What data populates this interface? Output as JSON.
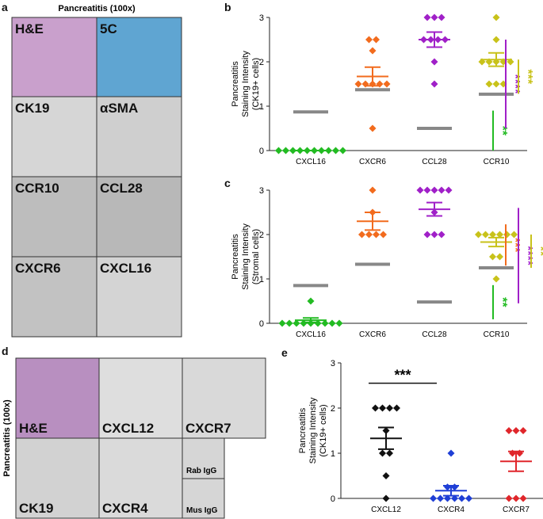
{
  "panels": {
    "a": "a",
    "b": "b",
    "c": "c",
    "d": "d",
    "e": "e"
  },
  "micrographs_a": {
    "title": "Pancreatitis (100x)",
    "tiles": [
      "H&E",
      "5C",
      "CK19",
      "αSMA",
      "CCR10",
      "CCL28",
      "CXCR6",
      "CXCL16"
    ]
  },
  "micrographs_d": {
    "title": "Pancreatitis (100x)",
    "tiles": [
      "H&E",
      "CXCL12",
      "CXCR7",
      "CK19",
      "CXCR4",
      "Rab IgG",
      "Mus IgG"
    ]
  },
  "chart_data": [
    {
      "type": "dot",
      "ylabel": [
        "Pancreatitis",
        "Staining Intensity",
        "(CK19+ cells)"
      ],
      "categories": [
        "CXCL16",
        "CXCR6",
        "CCL28",
        "CCR10"
      ],
      "colors": [
        "#22bb22",
        "#f26b1d",
        "#a020c8",
        "#c8c21a"
      ],
      "points": [
        [
          0,
          0,
          0,
          0,
          0,
          0,
          0,
          0,
          0,
          0
        ],
        [
          2.5,
          2.5,
          2.25,
          1.5,
          1.5,
          1.5,
          1.5,
          1.5,
          0.5
        ],
        [
          3,
          3,
          3,
          2.5,
          2.5,
          2.5,
          2.5,
          2,
          1.5
        ],
        [
          3,
          2.5,
          2,
          2,
          2,
          2,
          2,
          1.5,
          1.5,
          1.5
        ]
      ],
      "mean": [
        0,
        1.67,
        2.5,
        2.05
      ],
      "sem": [
        0,
        0.21,
        0.17,
        0.15
      ],
      "reference": [
        0.87,
        1.37,
        0.5,
        1.27
      ],
      "ylim": [
        0,
        3
      ],
      "yticks": [
        0,
        1,
        2,
        3
      ],
      "significance": [
        {
          "label": "**",
          "color": "#22bb22",
          "from": 0.9,
          "to": 0
        },
        {
          "label": "****",
          "color": "#a020c8",
          "from": 2.5,
          "to": 0.5
        },
        {
          "label": "***",
          "color": "#c8c21a",
          "from": 2.05,
          "to": 1.28
        }
      ]
    },
    {
      "type": "dot",
      "ylabel": [
        "Pancreatitis",
        "Staining Intensity",
        "(Stromal cells)"
      ],
      "categories": [
        "CXCL16",
        "CXCR6",
        "CCL28",
        "CCR10"
      ],
      "colors": [
        "#22bb22",
        "#f26b1d",
        "#a020c8",
        "#c8c21a"
      ],
      "points": [
        [
          0.5,
          0,
          0,
          0,
          0,
          0,
          0,
          0,
          0,
          0
        ],
        [
          3,
          2.5,
          2,
          2,
          2,
          2
        ],
        [
          3,
          3,
          3,
          3,
          3,
          2.5,
          2,
          2,
          2
        ],
        [
          2,
          2,
          2,
          2,
          2,
          2,
          1.5,
          1.5,
          1
        ]
      ],
      "mean": [
        0.07,
        2.3,
        2.57,
        1.83
      ],
      "sem": [
        0.05,
        0.2,
        0.15,
        0.1
      ],
      "reference": [
        0.85,
        1.33,
        0.48,
        1.25
      ],
      "ylim": [
        0,
        3
      ],
      "yticks": [
        0,
        1,
        2,
        3
      ],
      "significance": [
        {
          "label": "**",
          "color": "#22bb22",
          "from": 0.86,
          "to": 0.09
        },
        {
          "label": "***",
          "color": "#f26b1d",
          "from": 2.23,
          "to": 1.3
        },
        {
          "label": "****",
          "color": "#a020c8",
          "from": 2.6,
          "to": 0.45
        },
        {
          "label": "**",
          "color": "#c8c21a",
          "from": 2.0,
          "to": 1.25
        }
      ]
    },
    {
      "type": "dot",
      "ylabel": [
        "Pancreatitis",
        "Staining Intensity",
        "(CK19+ cells)"
      ],
      "categories": [
        "CXCL12",
        "CXCR4",
        "CXCR7"
      ],
      "colors": [
        "#111111",
        "#1f3fd6",
        "#e0262b"
      ],
      "points": [
        [
          2,
          2,
          2,
          2,
          1.5,
          1,
          1,
          0.5,
          0
        ],
        [
          1,
          0.25,
          0.25,
          0,
          0,
          0,
          0,
          0,
          0
        ],
        [
          1.5,
          1.5,
          1.5,
          1,
          1,
          0,
          0,
          0
        ]
      ],
      "mean": [
        1.33,
        0.17,
        0.82
      ],
      "sem": [
        0.24,
        0.11,
        0.22
      ],
      "ylim": [
        0,
        3
      ],
      "yticks": [
        0,
        1,
        2,
        3
      ],
      "bracket": {
        "label": "***",
        "y": 2.55
      }
    }
  ]
}
